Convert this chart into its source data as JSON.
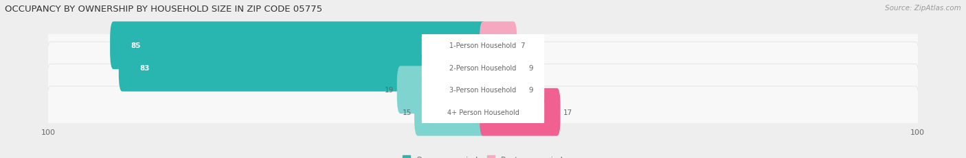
{
  "title": "OCCUPANCY BY OWNERSHIP BY HOUSEHOLD SIZE IN ZIP CODE 05775",
  "source": "Source: ZipAtlas.com",
  "categories": [
    "1-Person Household",
    "2-Person Household",
    "3-Person Household",
    "4+ Person Household"
  ],
  "owner_values": [
    85,
    83,
    19,
    15
  ],
  "renter_values": [
    7,
    9,
    9,
    17
  ],
  "owner_color_dark": "#29b5b0",
  "owner_color_light": "#80d4d0",
  "renter_color_dark": "#f06090",
  "renter_color_light": "#f5a8c0",
  "axis_max": 100,
  "background_color": "#eeeeee",
  "row_bg_color": "#f8f8f8",
  "label_bg_color": "#ffffff",
  "tick_label_color": "#666666",
  "cat_label_color": "#666666",
  "value_label_dark_color": "#ffffff",
  "value_label_light_color": "#666666",
  "title_color": "#333333",
  "source_color": "#999999"
}
